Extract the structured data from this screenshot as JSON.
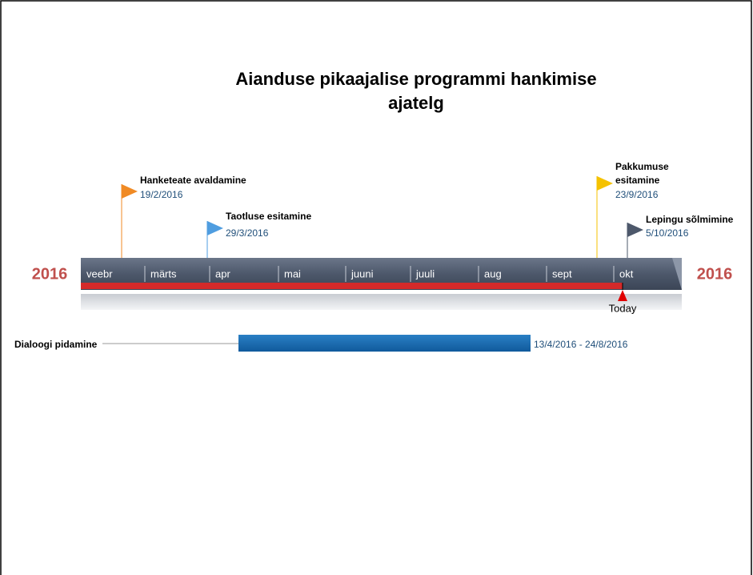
{
  "title": [
    "Aianduse pikaajalise programmi hankimise",
    "ajatelg"
  ],
  "year_left": "2016",
  "year_right": "2016",
  "months": [
    "veebr",
    "märts",
    "apr",
    "mai",
    "juuni",
    "juuli",
    "aug",
    "sept",
    "okt"
  ],
  "milestones": [
    {
      "label": "Hanketeate avaldamine",
      "date": "19/2/2016"
    },
    {
      "label": "Taotluse esitamine",
      "date": "29/3/2016"
    },
    {
      "label": [
        "Pakkumuse",
        "esitamine"
      ],
      "date": "23/9/2016"
    },
    {
      "label": "Lepingu sõlmimine",
      "date": "5/10/2016"
    }
  ],
  "today": "Today",
  "task": {
    "label": "Dialoogi pidamine",
    "dates": "13/4/2016 - 24/8/2016"
  }
}
